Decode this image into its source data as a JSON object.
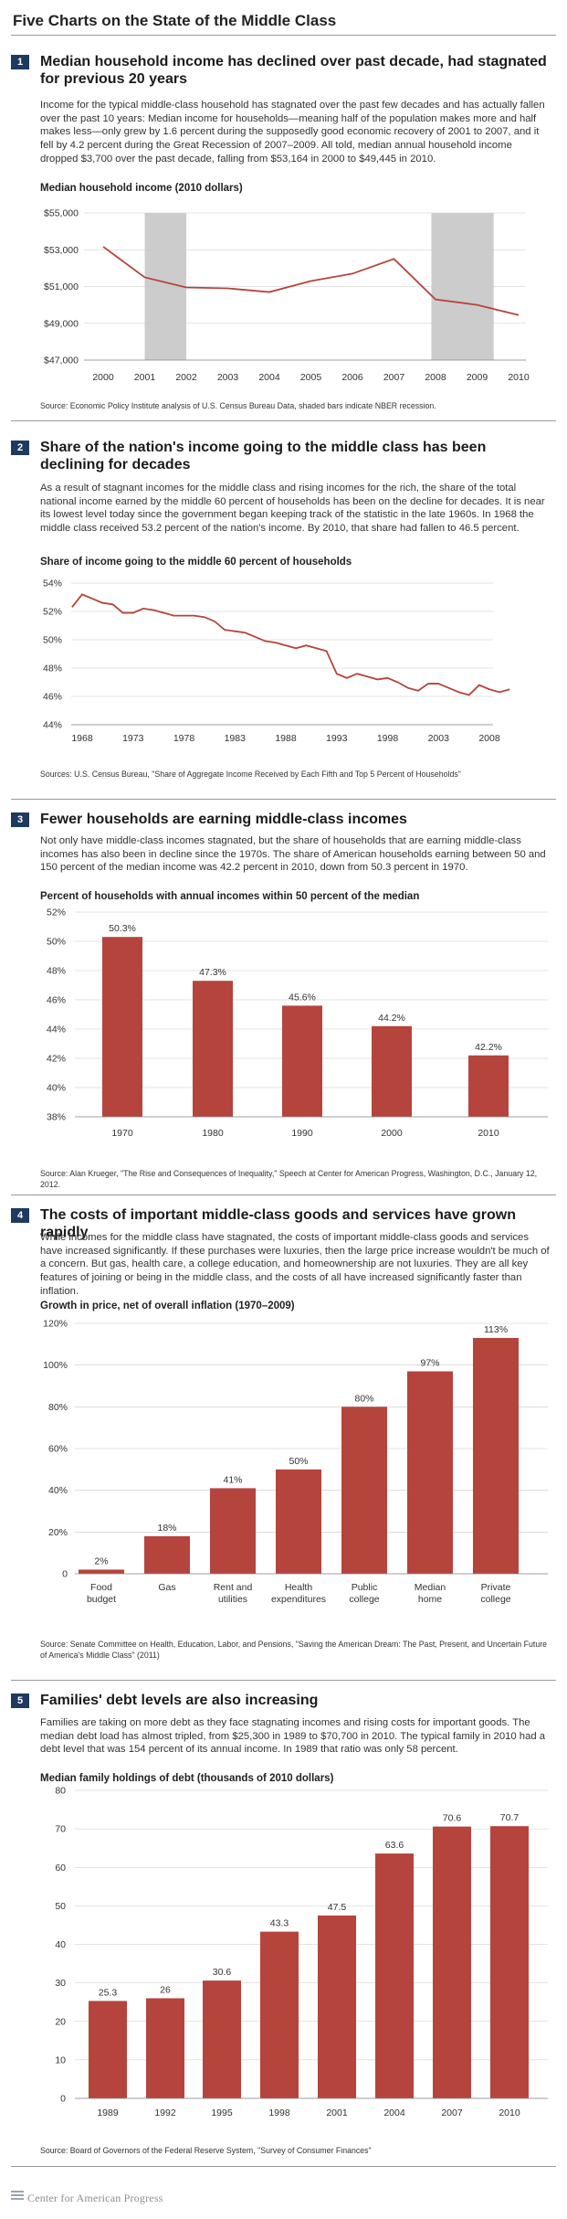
{
  "page_title": "Five Charts on the State of the Middle Class",
  "footer": {
    "org": "Center for American Progress"
  },
  "colors": {
    "bar": "#b5443c",
    "line": "#b5443c",
    "shade": "#cccccc",
    "badge": "#1f3a5f",
    "grid": "#c8c8c8"
  },
  "sections": [
    {
      "number": "1",
      "title": "Median household income has declined over past decade, had stagnated for previous 20 years",
      "text": "Income for the typical middle-class household has stagnated over the past few decades and has actually fallen over the past 10 years: Median income for households—meaning half of the population makes more and half makes less—only grew by 1.6 percent during the supposedly good economic recovery of 2001 to 2007, and it fell by 4.2 percent during the Great Recession of 2007–2009. All told, median annual household income dropped $3,700 over the past decade, falling from $53,164 in 2000 to $49,445 in 2010.",
      "chart_title": "Median household income (2010 dollars)",
      "source": "Source: Economic Policy Institute analysis of U.S. Census Bureau Data, shaded bars indicate NBER recession."
    },
    {
      "number": "2",
      "title": "Share of the nation's income going to the middle class has been declining for decades",
      "text": "As a result of stagnant incomes for the middle class and rising incomes for the rich, the share of the total national income earned by the middle 60 percent of households has been on the decline for decades. It is near its lowest level today since the government began keeping track of the statistic in the late 1960s. In 1968 the middle class received 53.2 percent of the nation's income. By 2010, that share had fallen to 46.5 percent.",
      "chart_title": "Share of income going to the middle 60 percent of households",
      "source": "Sources: U.S. Census Bureau, \"Share of Aggregate Income Received by Each Fifth and Top 5 Percent of Households\""
    },
    {
      "number": "3",
      "title": "Fewer households are earning middle-class incomes",
      "text": "Not only have middle-class incomes stagnated, but the share of households that are earning middle-class incomes has also been in decline since the 1970s. The share of American households earning between 50 and 150 percent of the median income was 42.2 percent in 2010, down from 50.3 percent in 1970.",
      "chart_title": "Percent of households with annual incomes within 50 percent of the median",
      "source": "Source: Alan Krueger, \"The Rise and Consequences of Inequality,\" Speech at Center for American Progress, Washington, D.C., January 12, 2012."
    },
    {
      "number": "4",
      "title": "The costs of important middle-class goods and services have grown rapidly",
      "text": "While incomes for the middle class have stagnated, the costs of important middle-class goods and services have increased significantly. If these purchases were luxuries, then the large price increase wouldn't be much of a concern. But gas, health care, a college education, and homeownership are not luxuries. They are all key features of joining or being in the middle class, and the costs of all have increased significantly faster than inflation.",
      "chart_title": "Growth in price, net of overall inflation (1970–2009)",
      "source": "Source: Senate Committee on Health, Education, Labor, and Pensions, \"Saving the American Dream: The Past, Present, and Uncertain Future of America's Middle Class\" (2011)"
    },
    {
      "number": "5",
      "title": "Families' debt levels are also increasing",
      "text": "Families are taking on more debt as they face stagnating incomes and rising costs for important goods. The median debt load has almost tripled, from $25,300 in 1989 to $70,700 in 2010. The typical family in 2010 had a debt level that was 154 percent of its annual income. In 1989 that ratio was only 58 percent.",
      "chart_title": "Median family holdings of debt (thousands of 2010 dollars)",
      "source": "Source: Board of Governors of the Federal Reserve System, \"Survey of Consumer Finances\""
    }
  ],
  "chart_data": [
    {
      "type": "line",
      "title": "Median household income (2010 dollars)",
      "x": [
        2000,
        2001,
        2002,
        2003,
        2004,
        2005,
        2006,
        2007,
        2008,
        2009,
        2010
      ],
      "values": [
        53164,
        51500,
        50950,
        50900,
        50700,
        51300,
        51700,
        52500,
        50300,
        50000,
        49445
      ],
      "y_ticks": [
        "$47,000",
        "$49,000",
        "$51,000",
        "$53,000",
        "$55,000"
      ],
      "ylim": [
        47000,
        55000
      ],
      "x_labels": [
        "2000",
        "2001",
        "2002",
        "2003",
        "2004",
        "2005",
        "2006",
        "2007",
        "2008",
        "2009",
        "2010"
      ],
      "shaded": [
        [
          2001,
          2002
        ],
        [
          2007.9,
          2009.4
        ]
      ]
    },
    {
      "type": "line",
      "title": "Share of income going to the middle 60 percent of households",
      "x": [
        1967,
        1968,
        1969,
        1970,
        1971,
        1972,
        1973,
        1974,
        1975,
        1976,
        1977,
        1978,
        1979,
        1980,
        1981,
        1982,
        1983,
        1984,
        1985,
        1986,
        1987,
        1988,
        1989,
        1990,
        1991,
        1992,
        1993,
        1994,
        1995,
        1996,
        1997,
        1998,
        1999,
        2000,
        2001,
        2002,
        2003,
        2004,
        2005,
        2006,
        2007,
        2008,
        2009,
        2010
      ],
      "values": [
        52.3,
        53.2,
        52.9,
        52.6,
        52.5,
        51.9,
        51.9,
        52.2,
        52.1,
        51.9,
        51.7,
        51.7,
        51.7,
        51.6,
        51.3,
        50.7,
        50.6,
        50.5,
        50.2,
        49.9,
        49.8,
        49.6,
        49.4,
        49.6,
        49.4,
        49.2,
        47.6,
        47.3,
        47.6,
        47.4,
        47.2,
        47.3,
        47.0,
        46.6,
        46.4,
        46.9,
        46.9,
        46.6,
        46.3,
        46.1,
        46.8,
        46.5,
        46.3,
        46.5
      ],
      "y_ticks": [
        "44%",
        "46%",
        "48%",
        "50%",
        "52%",
        "54%"
      ],
      "ylim": [
        44,
        54
      ],
      "x_labels": [
        "1968",
        "1973",
        "1978",
        "1983",
        "1988",
        "1993",
        "1998",
        "2003",
        "2008"
      ]
    },
    {
      "type": "bar",
      "title": "Percent of households with annual incomes within 50 percent of the median",
      "categories": [
        "1970",
        "1980",
        "1990",
        "2000",
        "2010"
      ],
      "values": [
        50.3,
        47.3,
        45.6,
        44.2,
        42.2
      ],
      "data_labels": [
        "50.3%",
        "47.3%",
        "45.6%",
        "44.2%",
        "42.2%"
      ],
      "y_ticks": [
        "38%",
        "40%",
        "42%",
        "44%",
        "46%",
        "48%",
        "50%",
        "52%"
      ],
      "ylim": [
        38,
        52
      ]
    },
    {
      "type": "bar",
      "title": "Growth in price, net of overall inflation (1970–2009)",
      "categories": [
        [
          "Food",
          "budget"
        ],
        [
          "Gas"
        ],
        [
          "Rent and",
          "utilities"
        ],
        [
          "Health",
          "expenditures"
        ],
        [
          "Public",
          "college"
        ],
        [
          "Median",
          "home"
        ],
        [
          "Private",
          "college"
        ]
      ],
      "values": [
        2,
        18,
        41,
        50,
        80,
        97,
        113
      ],
      "data_labels": [
        "2%",
        "18%",
        "41%",
        "50%",
        "80%",
        "97%",
        "113%"
      ],
      "y_ticks": [
        "0",
        "20%",
        "40%",
        "60%",
        "80%",
        "100%",
        "120%"
      ],
      "ylim": [
        0,
        120
      ]
    },
    {
      "type": "bar",
      "title": "Median family holdings of debt (thousands of 2010 dollars)",
      "categories": [
        "1989",
        "1992",
        "1995",
        "1998",
        "2001",
        "2004",
        "2007",
        "2010"
      ],
      "values": [
        25.3,
        26,
        30.6,
        43.3,
        47.5,
        63.6,
        70.6,
        70.7
      ],
      "data_labels": [
        "25.3",
        "26",
        "30.6",
        "43.3",
        "47.5",
        "63.6",
        "70.6",
        "70.7"
      ],
      "y_ticks": [
        "0",
        "10",
        "20",
        "30",
        "40",
        "50",
        "60",
        "70",
        "80"
      ],
      "ylim": [
        0,
        80
      ]
    }
  ]
}
